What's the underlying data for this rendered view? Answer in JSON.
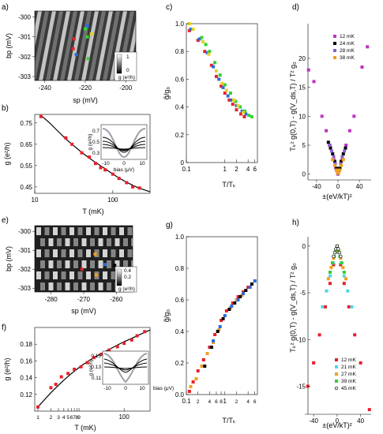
{
  "figure": {
    "panel_labels": [
      "a)",
      "b)",
      "c)",
      "d)",
      "e)",
      "f)",
      "g)",
      "h)"
    ]
  },
  "chart_data": [
    {
      "panel": "a",
      "type": "heatmap",
      "xlabel": "sp (mV)",
      "ylabel": "bp (mV)",
      "xticks": [
        "-240",
        "-220",
        "-200"
      ],
      "yticks": [
        "-300",
        "-301",
        "-302",
        "-303"
      ],
      "colorbar_label": "g (e²/h)",
      "colorbar_ticks": [
        "1",
        "0"
      ],
      "markers": [
        {
          "color": "#e8202a",
          "x": -225.5,
          "y": -301.1
        },
        {
          "color": "#e8202a",
          "x": -226,
          "y": -301.6
        },
        {
          "color": "#2a6be0",
          "x": -219,
          "y": -300.45
        },
        {
          "color": "#2a6be0",
          "x": -224.5,
          "y": -301.9
        },
        {
          "color": "#34d030",
          "x": -220,
          "y": -300.6
        },
        {
          "color": "#34d030",
          "x": -219,
          "y": -301.0
        },
        {
          "color": "#34d030",
          "x": -218.5,
          "y": -302.1
        },
        {
          "color": "#e8d020",
          "x": -217,
          "y": -300.85
        }
      ]
    },
    {
      "panel": "b",
      "type": "scatter",
      "xlabel": "T (mK)",
      "ylabel": "g (e²/h)",
      "xscale": "log",
      "xlim": [
        10,
        300
      ],
      "ylim": [
        0.42,
        0.79
      ],
      "xticks": [
        "10",
        "100"
      ],
      "yticks": [
        "0.75",
        "0.65",
        "0.55",
        "0.45"
      ],
      "points": {
        "x": [
          12,
          25,
          30,
          40,
          50,
          60,
          70,
          80,
          100,
          120,
          150,
          180,
          220
        ],
        "y": [
          0.78,
          0.68,
          0.65,
          0.61,
          0.59,
          0.56,
          0.54,
          0.53,
          0.51,
          0.49,
          0.47,
          0.45,
          0.445
        ]
      },
      "fit": {
        "x": [
          12,
          15,
          20,
          25,
          30,
          40,
          50,
          60,
          80,
          100,
          120,
          150,
          200,
          250,
          300
        ],
        "y": [
          0.785,
          0.755,
          0.71,
          0.675,
          0.65,
          0.612,
          0.585,
          0.565,
          0.535,
          0.51,
          0.492,
          0.472,
          0.45,
          0.437,
          0.427
        ]
      },
      "inset": {
        "xlabel": "bias (μV)",
        "ylabel": "g (e²/h)",
        "xticks": [
          "-10",
          "0",
          "10"
        ],
        "yticks": [
          "0.7",
          "0.5",
          "0.3"
        ]
      }
    },
    {
      "panel": "c",
      "type": "scatter",
      "xlabel": "T/Tₖ",
      "ylabel": "g̃/g₀",
      "xscale": "log",
      "xlim": [
        0.1,
        7
      ],
      "ylim": [
        0,
        1.0
      ],
      "xticks": [
        "0.1",
        "1",
        "2",
        "4",
        "6"
      ],
      "yticks": [
        "1.0",
        "0.8",
        "0.6",
        "0.4",
        "0.2",
        "0"
      ],
      "series": [
        {
          "color": "#e8202a",
          "x": [
            0.12,
            0.2,
            0.3,
            0.45,
            0.6,
            0.8,
            1.0,
            1.3,
            1.6,
            2.0,
            2.6,
            3.2
          ],
          "y": [
            0.95,
            0.88,
            0.8,
            0.7,
            0.62,
            0.55,
            0.5,
            0.45,
            0.42,
            0.38,
            0.35,
            0.33
          ]
        },
        {
          "color": "#2a6be0",
          "x": [
            0.13,
            0.22,
            0.35,
            0.5,
            0.7,
            0.9,
            1.2,
            1.5,
            2.0,
            2.8,
            3.5
          ],
          "y": [
            0.96,
            0.89,
            0.79,
            0.69,
            0.6,
            0.54,
            0.48,
            0.45,
            0.41,
            0.37,
            0.35
          ]
        },
        {
          "color": "#34d030",
          "x": [
            0.25,
            0.32,
            0.4,
            0.55,
            0.75,
            1.0,
            1.4,
            1.9,
            2.5,
            3.3,
            4.2,
            5.0
          ],
          "y": [
            0.9,
            0.85,
            0.8,
            0.72,
            0.63,
            0.56,
            0.5,
            0.44,
            0.4,
            0.37,
            0.34,
            0.33
          ]
        },
        {
          "color": "#e8d020",
          "x": [
            0.12,
            0.15,
            0.27,
            0.38,
            0.6,
            0.85,
            1.1,
            1.7,
            2.2,
            3.0
          ],
          "y": [
            1.0,
            0.96,
            0.87,
            0.78,
            0.66,
            0.57,
            0.52,
            0.45,
            0.41,
            0.36
          ]
        }
      ]
    },
    {
      "panel": "d",
      "type": "scatter",
      "xlabel": "±(eV/kT)²",
      "ylabel": "Tₖ² g(0,T) - g(V_ds,T) / T² g₀",
      "xlim": [
        -62,
        62
      ],
      "ylim": [
        -1,
        26
      ],
      "xticks": [
        "-40",
        "0",
        "40"
      ],
      "yticks": [
        "20",
        "15",
        "10",
        "5",
        "0"
      ],
      "series": [
        {
          "name": "12 mK",
          "color": "#c030c0",
          "x": [
            -55,
            -45,
            -30,
            -22,
            -15,
            -8,
            -4,
            0,
            4,
            8,
            15,
            22,
            30,
            45,
            55
          ],
          "y": [
            18,
            16,
            10,
            7.5,
            5,
            2.5,
            1.0,
            0,
            1.0,
            2.5,
            5,
            7.5,
            10,
            18.5,
            22
          ]
        },
        {
          "name": "24 mK",
          "color": "#000000",
          "x": [
            -18,
            -14,
            -10,
            -6,
            -3,
            0,
            3,
            6,
            10,
            14
          ],
          "y": [
            5.5,
            4.5,
            3.5,
            2.2,
            1.0,
            0.2,
            1.0,
            2.2,
            3.5,
            4.5
          ]
        },
        {
          "name": "28 mK",
          "color": "#8a60d0",
          "x": [
            -16,
            -12,
            -8,
            -5,
            -2,
            0,
            2,
            5,
            8,
            12
          ],
          "y": [
            5,
            4,
            3,
            1.8,
            0.6,
            0.1,
            0.6,
            1.8,
            3,
            4
          ]
        },
        {
          "name": "38 mK",
          "color": "#f0a020",
          "x": [
            -10,
            -6,
            -3,
            -1,
            1,
            3,
            6,
            10
          ],
          "y": [
            2.5,
            1.5,
            0.7,
            0.2,
            0.2,
            0.7,
            1.5,
            2.5
          ]
        }
      ]
    },
    {
      "panel": "e",
      "type": "heatmap",
      "xlabel": "sp (mV)",
      "ylabel": "bp (mV)",
      "xticks": [
        "-280",
        "-270",
        "-260"
      ],
      "yticks": [
        "-300",
        "-301",
        "-302",
        "-303"
      ],
      "colorbar_label": "g (e²/h)",
      "colorbar_ticks": [
        "0.4",
        "0.2",
        "0"
      ],
      "markers": [
        {
          "color": "#f0a020",
          "x": -266.5,
          "y": -301.2
        },
        {
          "color": "#f0a020",
          "x": -266.2,
          "y": -302.3
        },
        {
          "color": "#2a6be0",
          "x": -263.5,
          "y": -301.75
        },
        {
          "color": "#e8202a",
          "x": -270.5,
          "y": -302.0
        },
        {
          "color": "#000000",
          "x": -260.5,
          "y": -301.8
        }
      ]
    },
    {
      "panel": "f",
      "type": "scatter",
      "xlabel": "T (mK)",
      "ylabel": "g (e²/h)",
      "xscale": "log",
      "xlim": [
        1,
        400
      ],
      "ylim": [
        0.1,
        0.2
      ],
      "xticks": [
        "1",
        "2",
        "3",
        "4",
        "5",
        "6",
        "7",
        "8",
        "9",
        "100"
      ],
      "yticks": [
        "0.18",
        "0.16",
        "0.14",
        "0.12"
      ],
      "points": {
        "x": [
          1.0,
          2.0,
          2.6,
          3.5,
          5,
          7,
          10,
          14,
          20,
          30,
          45,
          70,
          100,
          150,
          200,
          300
        ],
        "y": [
          0.105,
          0.128,
          0.132,
          0.141,
          0.145,
          0.15,
          0.153,
          0.158,
          0.164,
          0.168,
          0.173,
          0.177,
          0.181,
          0.185,
          0.19,
          0.195
        ]
      },
      "fit": {
        "x": [
          1.0,
          1.5,
          2,
          3,
          4,
          6,
          8,
          10,
          15,
          20,
          30,
          50,
          70,
          100,
          150,
          200,
          300,
          400
        ],
        "y": [
          0.105,
          0.115,
          0.122,
          0.131,
          0.137,
          0.145,
          0.15,
          0.154,
          0.16,
          0.164,
          0.169,
          0.175,
          0.179,
          0.183,
          0.187,
          0.19,
          0.194,
          0.197
        ]
      },
      "inset": {
        "xlabel": "bias (μV)",
        "ylabel": "g (e²/h)",
        "xticks": [
          "-10",
          "0",
          "10"
        ],
        "yticks": [
          "0.15",
          "0.13",
          "0.11"
        ]
      }
    },
    {
      "panel": "g",
      "type": "scatter",
      "xlabel": "T/Tₖ",
      "ylabel": "g̃/g₀",
      "xscale": "log",
      "xlim": [
        0.1,
        7
      ],
      "ylim": [
        0,
        1.0
      ],
      "xticks": [
        "0.1",
        "2",
        "4",
        "6",
        "8",
        "1",
        "2",
        "4",
        "6"
      ],
      "yticks": [
        "1.0",
        "0.8",
        "0.6",
        "0.4",
        "0.2",
        "0.0"
      ],
      "series": [
        {
          "color": "#e8202a",
          "x": [
            0.12,
            0.15,
            0.2,
            0.28,
            0.4,
            0.55,
            0.8,
            1.1,
            1.6,
            2.2,
            3.0,
            4.0
          ],
          "y": [
            0.02,
            0.08,
            0.15,
            0.22,
            0.3,
            0.38,
            0.47,
            0.53,
            0.58,
            0.62,
            0.65,
            0.68
          ]
        },
        {
          "color": "#f0a020",
          "x": [
            0.13,
            0.18,
            0.25,
            0.35,
            0.5,
            0.7,
            1.0,
            1.4,
            2.0,
            2.8
          ],
          "y": [
            0.05,
            0.1,
            0.18,
            0.26,
            0.33,
            0.41,
            0.5,
            0.55,
            0.6,
            0.63
          ]
        },
        {
          "color": "#000000",
          "x": [
            0.3,
            0.45,
            0.65,
            0.9,
            1.3,
            1.8,
            2.5,
            3.5,
            5.0
          ],
          "y": [
            0.18,
            0.3,
            0.4,
            0.48,
            0.54,
            0.58,
            0.62,
            0.66,
            0.7
          ]
        },
        {
          "color": "#2a6be0",
          "x": [
            0.5,
            0.75,
            1.0,
            1.5,
            2.2,
            3.0,
            4.5,
            6.0
          ],
          "y": [
            0.34,
            0.43,
            0.5,
            0.56,
            0.6,
            0.64,
            0.68,
            0.72
          ]
        }
      ]
    },
    {
      "panel": "h",
      "type": "scatter",
      "xlabel": "±(eV/kT)²",
      "ylabel": "Tₖ² g(0,T) - g(V_ds,T) / T² g₀",
      "xlim": [
        -55,
        58
      ],
      "ylim": [
        -18,
        1
      ],
      "xticks": [
        "-40",
        "0",
        "40"
      ],
      "yticks": [
        "0",
        "-5",
        "-10",
        "-15"
      ],
      "series": [
        {
          "name": "12 mK",
          "color": "#e8202a",
          "x": [
            -50,
            -40,
            -30,
            -20,
            -12,
            -6,
            -2,
            0,
            2,
            6,
            12,
            20,
            30,
            40,
            55
          ],
          "y": [
            -15,
            -12.5,
            -9.5,
            -6.5,
            -4,
            -2,
            -0.6,
            0,
            -0.6,
            -2,
            -4,
            -6.5,
            -9.5,
            -12.5,
            -17.5
          ]
        },
        {
          "name": "21 mK",
          "color": "#50d8e8",
          "x": [
            -25,
            -18,
            -12,
            -7,
            -3,
            0,
            3,
            7,
            12,
            18,
            25
          ],
          "y": [
            -6.5,
            -4.8,
            -3.2,
            -1.8,
            -0.7,
            -0.1,
            -0.7,
            -1.8,
            -3.2,
            -4.8,
            -6.5
          ]
        },
        {
          "name": "27 mK",
          "color": "#f0a020",
          "x": [
            -15,
            -10,
            -6,
            -3,
            0,
            3,
            6,
            10,
            15
          ],
          "y": [
            -3.5,
            -2.3,
            -1.3,
            -0.6,
            0,
            -0.6,
            -1.3,
            -2.3,
            -3.5
          ]
        },
        {
          "name": "39 mK",
          "color": "#34d030",
          "x": [
            -12,
            -8,
            -5,
            -2,
            0,
            2,
            5,
            8,
            12
          ],
          "y": [
            -2.8,
            -1.8,
            -1.1,
            -0.4,
            0,
            -0.4,
            -1.1,
            -1.8,
            -2.8
          ]
        },
        {
          "name": "45 mK",
          "color": "#000000",
          "x": [
            -6,
            -4,
            -2,
            0,
            2,
            4,
            6
          ],
          "y": [
            -1.1,
            -0.7,
            -0.3,
            0,
            -0.3,
            -0.7,
            -1.1
          ]
        }
      ]
    }
  ]
}
